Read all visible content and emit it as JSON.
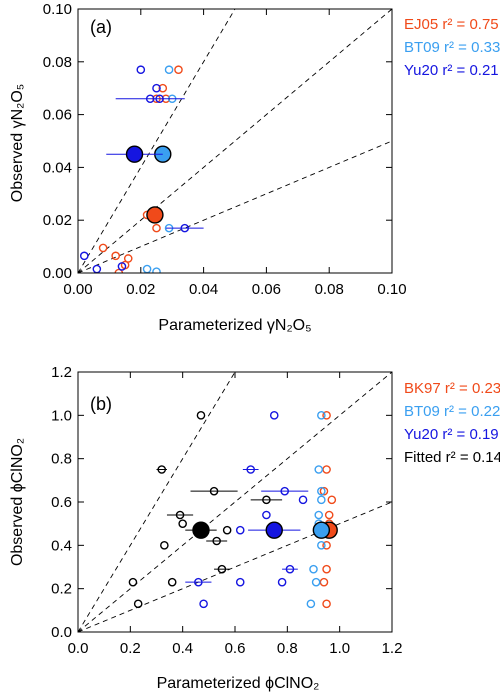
{
  "colors": {
    "ej05": "#f04a1a",
    "bk97": "#f04a1a",
    "bt09": "#3a9ff0",
    "yu20": "#1515e0",
    "fitted": "#000000"
  },
  "chart_data": [
    {
      "type": "scatter",
      "panel_label": "(a)",
      "xlabel": "Parameterized γN₂O₅",
      "ylabel": "Observed γN₂O₅",
      "xlim": [
        0,
        0.1
      ],
      "ylim": [
        0,
        0.1
      ],
      "xticks": [
        "0.00",
        "0.02",
        "0.04",
        "0.06",
        "0.08",
        "0.10"
      ],
      "yticks": [
        "0.00",
        "0.02",
        "0.04",
        "0.06",
        "0.08",
        "0.10"
      ],
      "xtick_values": [
        0,
        0.02,
        0.04,
        0.06,
        0.08,
        0.1
      ],
      "ytick_values": [
        0,
        0.02,
        0.04,
        0.06,
        0.08,
        0.1
      ],
      "reference_lines": [
        2,
        1,
        0.5
      ],
      "legend": [
        {
          "text": "EJ05 r² = 0.75",
          "color": "#f04a1a"
        },
        {
          "text": "BT09 r² = 0.33",
          "color": "#3a9ff0"
        },
        {
          "text": "Yu20 r² = 0.21",
          "color": "#1515e0"
        }
      ],
      "series": [
        {
          "name": "EJ05",
          "color": "#f04a1a",
          "points": [
            {
              "x": 0.013,
              "y": 0.0,
              "xerr": 0.0
            },
            {
              "x": 0.015,
              "y": 0.003,
              "xerr": 0.0
            },
            {
              "x": 0.016,
              "y": 0.0055,
              "xerr": 0.0
            },
            {
              "x": 0.008,
              "y": 0.0095,
              "xerr": 0.0
            },
            {
              "x": 0.012,
              "y": 0.0065,
              "xerr": 0.0
            },
            {
              "x": 0.022,
              "y": 0.022,
              "xerr": 0.0
            },
            {
              "x": 0.025,
              "y": 0.017,
              "xerr": 0.0
            },
            {
              "x": 0.025,
              "y": 0.066,
              "xerr": 0.0
            },
            {
              "x": 0.028,
              "y": 0.066,
              "xerr": 0.0
            },
            {
              "x": 0.027,
              "y": 0.07,
              "xerr": 0.0
            },
            {
              "x": 0.028,
              "y": 0.045,
              "xerr": 0.0
            },
            {
              "x": 0.032,
              "y": 0.077,
              "xerr": 0.0
            }
          ],
          "mean": {
            "x": 0.0245,
            "y": 0.022
          }
        },
        {
          "name": "BT09",
          "color": "#3a9ff0",
          "points": [
            {
              "x": 0.022,
              "y": 0.0015,
              "xerr": 0.0
            },
            {
              "x": 0.025,
              "y": 0.0005,
              "xerr": 0.0
            },
            {
              "x": 0.029,
              "y": 0.017,
              "xerr": 0.0
            },
            {
              "x": 0.029,
              "y": 0.077,
              "xerr": 0.0
            },
            {
              "x": 0.03,
              "y": 0.066,
              "xerr": 0.0
            }
          ],
          "mean": {
            "x": 0.027,
            "y": 0.045
          }
        },
        {
          "name": "Yu20",
          "color": "#1515e0",
          "points": [
            {
              "x": 0.002,
              "y": 0.0065,
              "xerr": 0.0
            },
            {
              "x": 0.006,
              "y": 0.0015,
              "xerr": 0.0
            },
            {
              "x": 0.014,
              "y": 0.0025,
              "xerr": 0.0
            },
            {
              "x": 0.02,
              "y": 0.077,
              "xerr": 0.0
            },
            {
              "x": 0.023,
              "y": 0.066,
              "xerr": 0.011
            },
            {
              "x": 0.026,
              "y": 0.066,
              "xerr": 0.0
            },
            {
              "x": 0.025,
              "y": 0.07,
              "xerr": 0.0
            },
            {
              "x": 0.034,
              "y": 0.017,
              "xerr": 0.006
            }
          ],
          "mean": {
            "x": 0.018,
            "y": 0.045,
            "xerr": 0.009
          }
        }
      ]
    },
    {
      "type": "scatter",
      "panel_label": "(b)",
      "xlabel": "Parameterized ϕClNO₂",
      "ylabel": "Observed ϕClNO₂",
      "xlim": [
        0,
        1.2
      ],
      "ylim": [
        0,
        1.2
      ],
      "xticks": [
        "0.0",
        "0.2",
        "0.4",
        "0.6",
        "0.8",
        "1.0",
        "1.2"
      ],
      "yticks": [
        "0.0",
        "0.2",
        "0.4",
        "0.6",
        "0.8",
        "1.0",
        "1.2"
      ],
      "xtick_values": [
        0,
        0.2,
        0.4,
        0.6,
        0.8,
        1.0,
        1.2
      ],
      "ytick_values": [
        0,
        0.2,
        0.4,
        0.6,
        0.8,
        1.0,
        1.2
      ],
      "reference_lines": [
        2,
        1,
        0.5
      ],
      "legend": [
        {
          "text": "BK97 r² = 0.23",
          "color": "#f04a1a"
        },
        {
          "text": "BT09 r² = 0.22",
          "color": "#3a9ff0"
        },
        {
          "text": "Yu20 r² = 0.19",
          "color": "#1515e0"
        },
        {
          "text": "Fitted r² = 0.14",
          "color": "#000000"
        }
      ],
      "series": [
        {
          "name": "BK97",
          "color": "#f04a1a",
          "points": [
            {
              "x": 0.95,
              "y": 1.0,
              "xerr": 0.0
            },
            {
              "x": 0.95,
              "y": 0.75,
              "xerr": 0.0
            },
            {
              "x": 0.94,
              "y": 0.65,
              "xerr": 0.0
            },
            {
              "x": 0.97,
              "y": 0.61,
              "xerr": 0.0
            },
            {
              "x": 0.96,
              "y": 0.54,
              "xerr": 0.0
            },
            {
              "x": 0.96,
              "y": 0.5,
              "xerr": 0.0
            },
            {
              "x": 0.95,
              "y": 0.4,
              "xerr": 0.0
            },
            {
              "x": 0.95,
              "y": 0.29,
              "xerr": 0.0
            },
            {
              "x": 0.94,
              "y": 0.23,
              "xerr": 0.0
            },
            {
              "x": 0.95,
              "y": 0.13,
              "xerr": 0.0
            }
          ],
          "mean": {
            "x": 0.96,
            "y": 0.47
          }
        },
        {
          "name": "BT09",
          "color": "#3a9ff0",
          "points": [
            {
              "x": 0.93,
              "y": 1.0,
              "xerr": 0.0
            },
            {
              "x": 0.92,
              "y": 0.75,
              "xerr": 0.0
            },
            {
              "x": 0.93,
              "y": 0.65,
              "xerr": 0.0
            },
            {
              "x": 0.93,
              "y": 0.61,
              "xerr": 0.0
            },
            {
              "x": 0.92,
              "y": 0.54,
              "xerr": 0.0
            },
            {
              "x": 0.92,
              "y": 0.5,
              "xerr": 0.0
            },
            {
              "x": 0.93,
              "y": 0.4,
              "xerr": 0.0
            },
            {
              "x": 0.9,
              "y": 0.29,
              "xerr": 0.0
            },
            {
              "x": 0.91,
              "y": 0.23,
              "xerr": 0.0
            },
            {
              "x": 0.89,
              "y": 0.13,
              "xerr": 0.0
            }
          ],
          "mean": {
            "x": 0.93,
            "y": 0.47
          }
        },
        {
          "name": "Yu20",
          "color": "#1515e0",
          "points": [
            {
              "x": 0.75,
              "y": 1.0,
              "xerr": 0.0
            },
            {
              "x": 0.66,
              "y": 0.75,
              "xerr": 0.03
            },
            {
              "x": 0.79,
              "y": 0.65,
              "xerr": 0.09
            },
            {
              "x": 0.86,
              "y": 0.61,
              "xerr": 0.0
            },
            {
              "x": 0.72,
              "y": 0.54,
              "xerr": 0.0
            },
            {
              "x": 0.62,
              "y": 0.47,
              "xerr": 0.0
            },
            {
              "x": 0.81,
              "y": 0.29,
              "xerr": 0.03
            },
            {
              "x": 0.78,
              "y": 0.23,
              "xerr": 0.0
            },
            {
              "x": 0.46,
              "y": 0.23,
              "xerr": 0.05
            },
            {
              "x": 0.62,
              "y": 0.23,
              "xerr": 0.0
            },
            {
              "x": 0.48,
              "y": 0.13,
              "xerr": 0.0
            }
          ],
          "mean": {
            "x": 0.75,
            "y": 0.47,
            "xerr": 0.1
          }
        },
        {
          "name": "Fitted",
          "color": "#000000",
          "points": [
            {
              "x": 0.47,
              "y": 1.0,
              "xerr": 0.0
            },
            {
              "x": 0.32,
              "y": 0.75,
              "xerr": 0.02
            },
            {
              "x": 0.52,
              "y": 0.65,
              "xerr": 0.09
            },
            {
              "x": 0.72,
              "y": 0.61,
              "xerr": 0.06
            },
            {
              "x": 0.39,
              "y": 0.54,
              "xerr": 0.05
            },
            {
              "x": 0.4,
              "y": 0.5,
              "xerr": 0.0
            },
            {
              "x": 0.57,
              "y": 0.47,
              "xerr": 0.0
            },
            {
              "x": 0.53,
              "y": 0.42,
              "xerr": 0.04
            },
            {
              "x": 0.33,
              "y": 0.4,
              "xerr": 0.0
            },
            {
              "x": 0.55,
              "y": 0.29,
              "xerr": 0.03
            },
            {
              "x": 0.36,
              "y": 0.23,
              "xerr": 0.0
            },
            {
              "x": 0.21,
              "y": 0.23,
              "xerr": 0.0
            },
            {
              "x": 0.23,
              "y": 0.13,
              "xerr": 0.0
            }
          ],
          "mean": {
            "x": 0.47,
            "y": 0.47,
            "xerr": 0.06
          }
        }
      ]
    }
  ]
}
